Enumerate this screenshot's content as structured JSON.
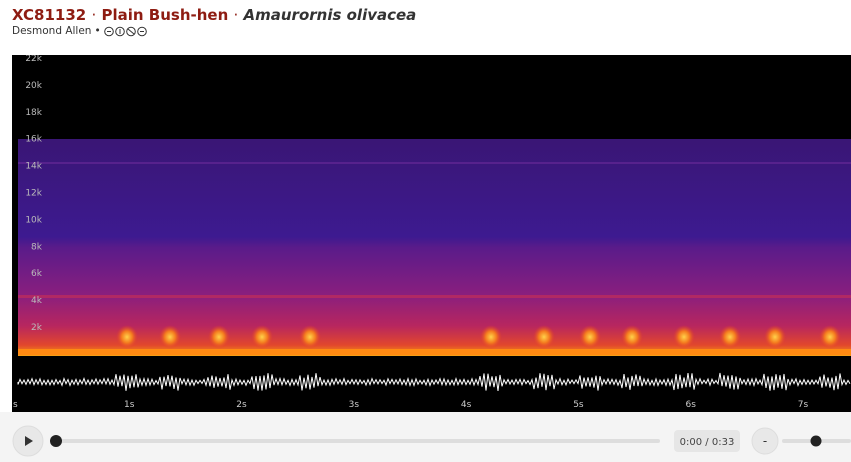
{
  "header": {
    "id": "XC81132",
    "separator": "·",
    "common_name": "Plain Bush-hen",
    "scientific_name": "Amaurornis olivacea",
    "author": "Desmond Allen",
    "byline_separator": "•"
  },
  "spectrogram": {
    "frequency_labels": [
      "22k",
      "20k",
      "18k",
      "16k",
      "14k",
      "12k",
      "10k",
      "8k",
      "6k",
      "4k",
      "2k"
    ],
    "time_labels": [
      "s",
      "1s",
      "2s",
      "3s",
      "4s",
      "5s",
      "6s",
      "7s"
    ]
  },
  "player": {
    "time": "0:00 / 0:33",
    "zoom_out": "-"
  }
}
